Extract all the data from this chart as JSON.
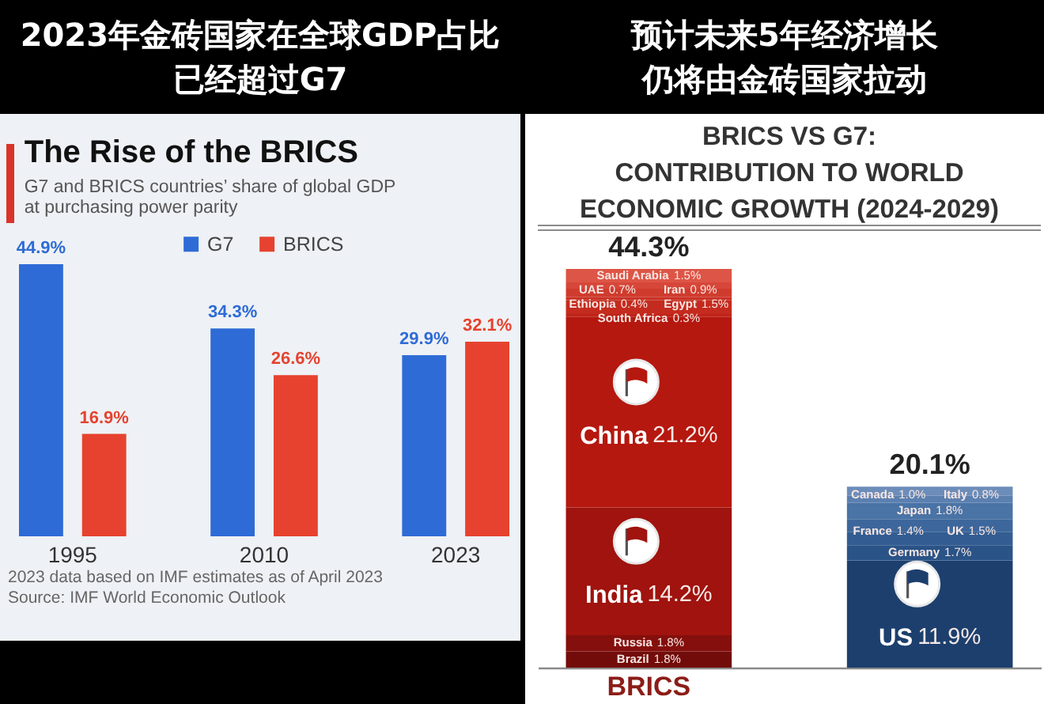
{
  "chart_data": [
    {
      "type": "bar",
      "title": "The Rise of the BRICS",
      "subtitle": "G7 and BRICS countries’ share of global GDP\nat purchasing power parity",
      "categories": [
        "1995",
        "2010",
        "2023"
      ],
      "series": [
        {
          "name": "G7",
          "color": "#2e6bd6",
          "values": [
            44.9,
            34.3,
            29.9
          ],
          "value_labels": [
            "44.9%",
            "34.3%",
            "29.9%"
          ]
        },
        {
          "name": "BRICS",
          "color": "#e6422f",
          "values": [
            16.9,
            26.6,
            32.1
          ],
          "value_labels": [
            "16.9%",
            "26.6%",
            "32.1%"
          ]
        }
      ],
      "legend": "top",
      "annotations": [
        "2023年金砖国家在全球GDP占比已经超过G7",
        "2023 data based on IMF estimates as of April 2023",
        "Source: IMF World Economic Outlook"
      ]
    },
    {
      "type": "bar",
      "stacked": true,
      "title": "BRICS VS G7:\nCONTRIBUTION TO WORLD\nECONOMIC GROWTH (2024-2029)",
      "categories": [
        "BRICS",
        null
      ],
      "series": [
        {
          "name": "Brazil",
          "color": "#720c0a",
          "values": [
            1.8,
            null
          ],
          "value_labels": [
            "1.8%",
            null
          ]
        },
        {
          "name": "Russia",
          "color": "#840f0c",
          "values": [
            1.8,
            null
          ],
          "value_labels": [
            "1.8%",
            null
          ]
        },
        {
          "name": "India",
          "color": "#a0130e",
          "values": [
            14.2,
            null
          ],
          "value_labels": [
            "14.2%",
            null
          ]
        },
        {
          "name": "China",
          "color": "#b5180f",
          "values": [
            21.2,
            null
          ],
          "value_labels": [
            "21.2%",
            null
          ]
        },
        {
          "name": "South Africa",
          "color": "#bf2418",
          "values": [
            0.3,
            null
          ],
          "value_labels": [
            "0.3%",
            null
          ]
        },
        {
          "name": "Egypt",
          "color": "#c42b1e",
          "values": [
            1.5,
            null
          ],
          "value_labels": [
            "1.5%",
            null
          ]
        },
        {
          "name": "Ethiopia",
          "color": "#c93325",
          "values": [
            0.4,
            null
          ],
          "value_labels": [
            "0.4%",
            null
          ]
        },
        {
          "name": "Iran",
          "color": "#cf3c2e",
          "values": [
            0.9,
            null
          ],
          "value_labels": [
            "0.9%",
            null
          ]
        },
        {
          "name": "UAE",
          "color": "#d6473a",
          "values": [
            0.7,
            null
          ],
          "value_labels": [
            "0.7%",
            null
          ]
        },
        {
          "name": "Saudi Arabia",
          "color": "#dd5546",
          "values": [
            1.5,
            null
          ],
          "value_labels": [
            "1.5%",
            null
          ]
        },
        {
          "name": "US",
          "color": "#1c3f6e",
          "values": [
            null,
            11.9
          ],
          "value_labels": [
            null,
            "11.9%"
          ]
        },
        {
          "name": "Germany",
          "color": "#2a5387",
          "values": [
            null,
            1.7
          ],
          "value_labels": [
            null,
            "1.7%"
          ]
        },
        {
          "name": "UK",
          "color": "#335d92",
          "values": [
            null,
            1.5
          ],
          "value_labels": [
            null,
            "1.5%"
          ]
        },
        {
          "name": "France",
          "color": "#3d679c",
          "values": [
            null,
            1.4
          ],
          "value_labels": [
            null,
            "1.4%"
          ]
        },
        {
          "name": "Japan",
          "color": "#4a73a6",
          "values": [
            null,
            1.8
          ],
          "value_labels": [
            null,
            "1.8%"
          ]
        },
        {
          "name": "Italy",
          "color": "#5b80b0",
          "values": [
            null,
            0.8
          ],
          "value_labels": [
            null,
            "0.8%"
          ]
        },
        {
          "name": "Canada",
          "color": "#6c8dba",
          "values": [
            null,
            1.0
          ],
          "value_labels": [
            null,
            "1.0%"
          ]
        }
      ],
      "totals": [
        "44.3%",
        "20.1%"
      ],
      "annotations": [
        "预计未来5年经济增长仍将由金砖国家拉动"
      ]
    }
  ]
}
